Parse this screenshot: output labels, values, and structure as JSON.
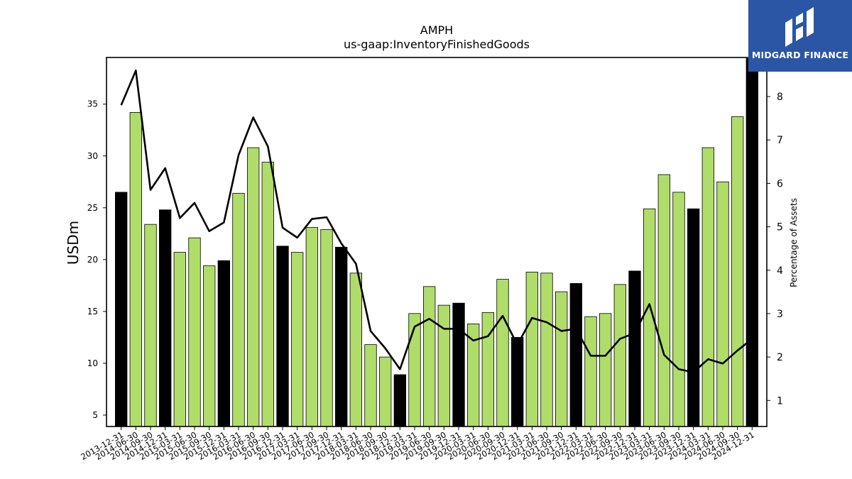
{
  "chart_data": {
    "type": "bar",
    "title": "AMPH",
    "subtitle": "us-gaap:InventoryFinishedGoods",
    "ylabel": "USDm",
    "y2label": "Percentage of Assets",
    "ylim": [
      3.9,
      39.5
    ],
    "y2lim": [
      0.4,
      8.9
    ],
    "yticks": [
      5,
      10,
      15,
      20,
      25,
      30,
      35
    ],
    "y2ticks": [
      1,
      2,
      3,
      4,
      5,
      6,
      7,
      8
    ],
    "categories": [
      "2013-12-31",
      "2014-06-30",
      "2014-09-30",
      "2014-12-31",
      "2015-03-31",
      "2015-06-30",
      "2015-09-30",
      "2015-12-31",
      "2016-03-31",
      "2016-06-30",
      "2016-09-30",
      "2016-12-31",
      "2017-03-31",
      "2017-06-30",
      "2017-09-30",
      "2017-12-31",
      "2018-03-31",
      "2018-06-30",
      "2018-09-30",
      "2018-12-31",
      "2019-03-31",
      "2019-06-30",
      "2019-09-30",
      "2019-12-31",
      "2020-03-31",
      "2020-06-30",
      "2020-09-30",
      "2020-12-31",
      "2021-03-31",
      "2021-06-30",
      "2021-09-30",
      "2021-12-31",
      "2022-03-31",
      "2022-06-30",
      "2022-09-30",
      "2022-12-31",
      "2023-03-31",
      "2023-06-30",
      "2023-09-30",
      "2023-12-31",
      "2024-03-31",
      "2024-06-30",
      "2024-09-30",
      "2024-12-31"
    ],
    "series": [
      {
        "kind": "bar",
        "values": [
          26.5,
          34.2,
          23.4,
          24.8,
          20.7,
          22.1,
          19.4,
          19.9,
          26.4,
          30.8,
          29.4,
          21.3,
          20.7,
          23.1,
          22.9,
          21.2,
          18.7,
          11.8,
          10.6,
          8.9,
          14.8,
          17.4,
          15.6,
          15.8,
          13.8,
          14.9,
          18.1,
          12.5,
          18.8,
          18.7,
          16.9,
          17.7,
          14.5,
          14.8,
          17.6,
          18.9,
          24.9,
          28.2,
          26.5,
          24.9,
          30.8,
          27.5,
          33.8,
          39.4
        ],
        "highlight": [
          true,
          false,
          false,
          true,
          false,
          false,
          false,
          true,
          false,
          false,
          false,
          true,
          false,
          false,
          false,
          true,
          false,
          false,
          false,
          true,
          false,
          false,
          false,
          true,
          false,
          false,
          false,
          true,
          false,
          false,
          false,
          true,
          false,
          false,
          false,
          true,
          false,
          false,
          false,
          true,
          false,
          false,
          false,
          true
        ],
        "color": "#b0dd6a",
        "highlight_color": "#000000"
      },
      {
        "kind": "line",
        "axis": "right",
        "values": [
          7.8,
          8.6,
          5.85,
          6.35,
          5.2,
          5.55,
          4.9,
          5.1,
          6.65,
          7.52,
          6.85,
          4.98,
          4.75,
          5.18,
          5.22,
          4.62,
          4.15,
          2.6,
          2.2,
          1.72,
          2.7,
          2.88,
          2.65,
          2.65,
          2.38,
          2.48,
          2.95,
          2.28,
          2.9,
          2.8,
          2.6,
          2.65,
          2.03,
          2.03,
          2.42,
          2.55,
          3.22,
          2.05,
          1.72,
          1.65,
          1.95,
          1.85,
          2.15,
          2.42
        ],
        "color": "#000000"
      }
    ],
    "grid": false,
    "legend": "none"
  },
  "logo": {
    "text": "MIDGARD FINANCE"
  },
  "colors": {
    "bar": "#b0dd6a",
    "bar_highlight": "#000000",
    "line": "#000000",
    "logo_bg": "#2b56a6"
  }
}
